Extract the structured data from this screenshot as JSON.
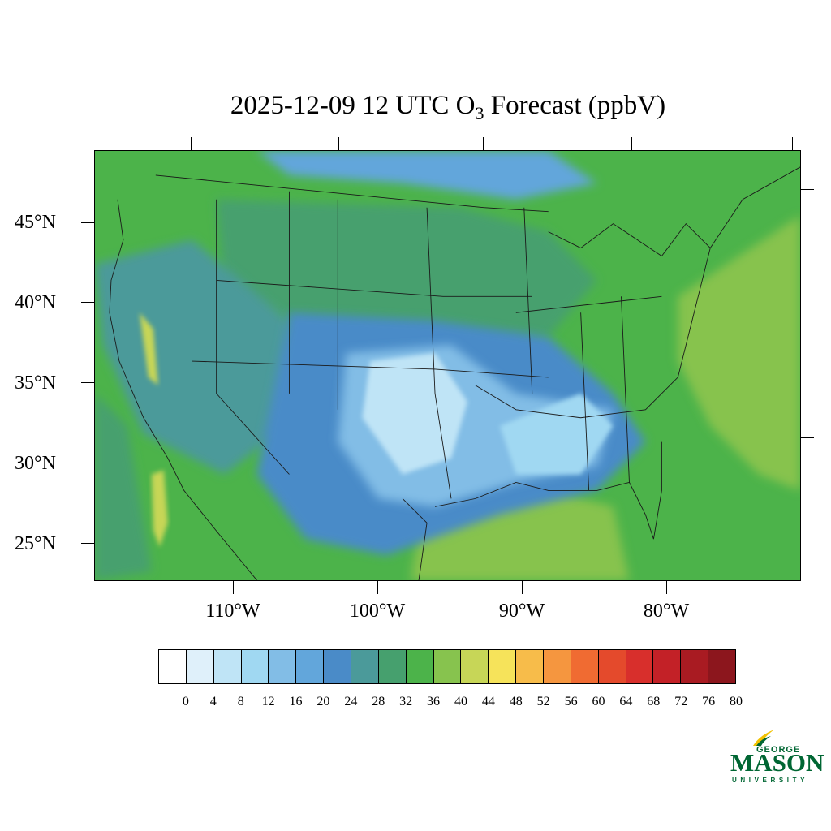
{
  "title": {
    "prefix": "2025-12-09 12 UTC O",
    "subscript": "3",
    "suffix": " Forecast (ppbV)"
  },
  "map": {
    "lat_labels": [
      "45°N",
      "40°N",
      "35°N",
      "30°N",
      "25°N"
    ],
    "lon_labels": [
      "110°W",
      "100°W",
      "90°W",
      "80°W"
    ]
  },
  "colorbar": {
    "labels": [
      "0",
      "4",
      "8",
      "12",
      "16",
      "20",
      "24",
      "28",
      "32",
      "36",
      "40",
      "44",
      "48",
      "52",
      "56",
      "60",
      "64",
      "68",
      "72",
      "76",
      "80"
    ],
    "colors": [
      "#ffffff",
      "#dff0fa",
      "#bfe4f6",
      "#a0d8f2",
      "#82bde6",
      "#62a6db",
      "#4a8bc8",
      "#4b9a9a",
      "#46a06e",
      "#4cb34a",
      "#87c34e",
      "#c7d657",
      "#f6e35a",
      "#f7bc4a",
      "#f5963f",
      "#f06b32",
      "#e44a2c",
      "#d82f2c",
      "#c32127",
      "#a91b22",
      "#8c161d"
    ]
  },
  "logo": {
    "line1": "GEORGE",
    "line2": "MASON",
    "line3": "UNIVERSITY",
    "color": "#006633",
    "accent": "#f2c200"
  }
}
